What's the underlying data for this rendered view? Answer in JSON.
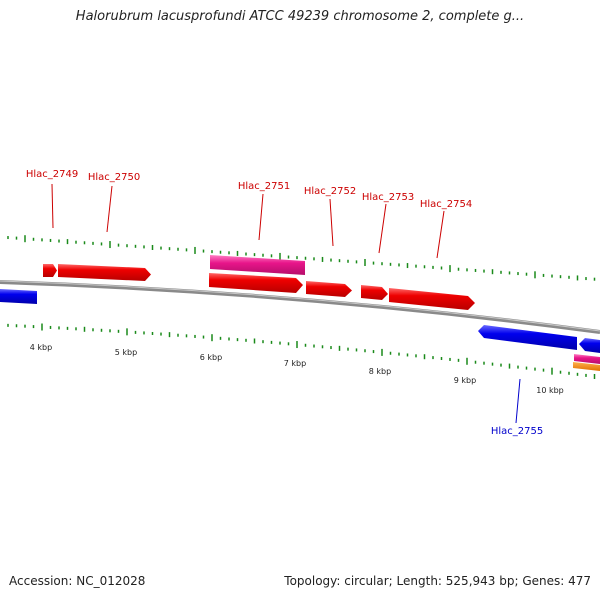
{
  "title": "Halorubrum lacusprofundi ATCC 49239 chromosome 2, complete g...",
  "footer": {
    "accession": "Accession: NC_012028",
    "summary": "Topology: circular; Length: 525,943 bp; Genes: 477"
  },
  "colors": {
    "forward_gene": "#ee0000",
    "reverse_gene": "#0000ee",
    "rna_feature": "#e8158a",
    "other_feature": "#ff8c00",
    "backbone": "#8a8a8a",
    "tick": "#1a8a1a"
  },
  "scale_labels": [
    "4 kbp",
    "5 kbp",
    "6 kbp",
    "7 kbp",
    "8 kbp",
    "9 kbp",
    "10 kbp"
  ],
  "gene_labels": [
    {
      "name": "Hlac_2749",
      "strand": "forward"
    },
    {
      "name": "Hlac_2750",
      "strand": "forward"
    },
    {
      "name": "Hlac_2751",
      "strand": "forward"
    },
    {
      "name": "Hlac_2752",
      "strand": "forward"
    },
    {
      "name": "Hlac_2753",
      "strand": "forward"
    },
    {
      "name": "Hlac_2754",
      "strand": "forward"
    },
    {
      "name": "Hlac_2755",
      "strand": "reverse"
    }
  ]
}
